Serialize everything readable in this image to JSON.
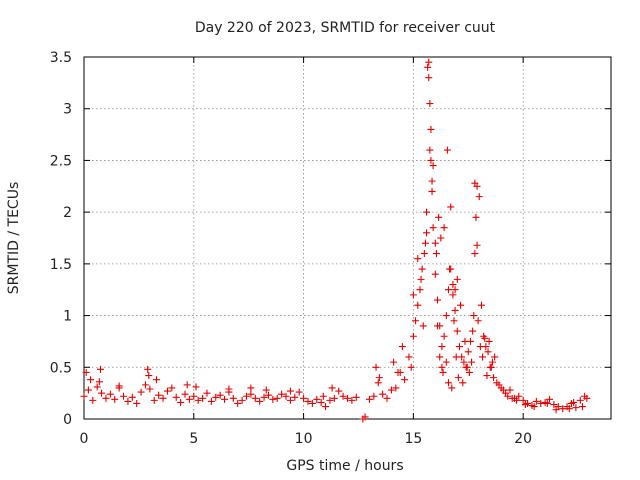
{
  "chart_data": {
    "type": "scatter",
    "title": "Day 220 of 2023, SRMTID for receiver cuut",
    "xlabel": "GPS time / hours",
    "ylabel": "SRMTID / TECUs",
    "xlim": [
      0,
      24
    ],
    "ylim": [
      0,
      3.5
    ],
    "xticks": [
      0,
      5,
      10,
      15,
      20
    ],
    "xtick_labels": [
      "0",
      "5",
      "10",
      "15",
      "20"
    ],
    "yticks": [
      0,
      0.5,
      1,
      1.5,
      2,
      2.5,
      3,
      3.5
    ],
    "ytick_labels": [
      "0",
      "0.5",
      "1",
      "1.5",
      "2",
      "2.5",
      "3",
      "3.5"
    ],
    "grid": true,
    "marker": "+",
    "color": "#e60000",
    "series": [
      {
        "name": "SRMTID",
        "x": [
          0.0,
          0.2,
          0.4,
          0.6,
          0.8,
          1.0,
          1.2,
          1.4,
          1.6,
          1.8,
          2.0,
          2.2,
          2.4,
          2.6,
          2.8,
          3.0,
          3.2,
          3.4,
          3.6,
          3.8,
          4.0,
          4.2,
          4.4,
          4.6,
          4.8,
          5.0,
          5.2,
          5.4,
          5.6,
          5.8,
          6.0,
          6.2,
          6.4,
          6.6,
          6.8,
          7.0,
          7.2,
          7.4,
          7.6,
          7.8,
          8.0,
          8.2,
          8.4,
          8.6,
          8.8,
          9.0,
          9.2,
          9.4,
          9.6,
          9.8,
          10.0,
          10.2,
          10.4,
          10.6,
          10.8,
          11.0,
          11.2,
          11.4,
          11.6,
          11.8,
          12.0,
          12.2,
          12.4,
          12.7,
          13.0,
          13.2,
          13.4,
          13.6,
          13.8,
          14.0,
          14.2,
          14.4,
          14.6,
          14.8,
          15.0,
          15.1,
          15.2,
          15.3,
          15.4,
          15.5,
          15.6,
          15.65,
          15.7,
          15.75,
          15.8,
          15.85,
          15.9,
          16.0,
          16.1,
          16.2,
          16.3,
          16.4,
          16.5,
          16.6,
          16.7,
          16.8,
          16.9,
          17.0,
          17.1,
          17.2,
          17.3,
          17.4,
          17.5,
          17.6,
          17.7,
          17.8,
          17.9,
          18.0,
          18.1,
          18.2,
          18.3,
          18.4,
          18.5,
          18.6,
          18.8,
          19.0,
          19.2,
          19.4,
          19.6,
          19.8,
          20.0,
          20.2,
          20.4,
          20.6,
          20.8,
          21.0,
          21.2,
          21.4,
          21.6,
          21.8,
          22.0,
          22.2,
          22.4,
          22.6,
          22.8,
          0.1,
          0.3,
          0.7,
          0.75,
          1.6,
          2.9,
          2.95,
          3.3,
          4.7,
          5.1,
          6.6,
          7.6,
          8.3,
          9.4,
          10.9,
          11.3,
          12.8,
          13.3,
          13.45,
          14.1,
          14.3,
          14.5,
          14.9,
          15.0,
          15.2,
          15.35,
          15.45,
          15.55,
          15.6,
          15.7,
          15.75,
          15.8,
          15.85,
          15.9,
          16.0,
          16.05,
          16.1,
          16.15,
          16.2,
          16.25,
          16.3,
          16.35,
          16.4,
          16.5,
          16.55,
          16.6,
          16.65,
          16.7,
          16.75,
          16.8,
          16.85,
          16.9,
          16.95,
          17.0,
          17.05,
          17.15,
          17.25,
          17.35,
          17.45,
          17.55,
          17.65,
          17.75,
          17.8,
          17.85,
          17.9,
          17.95,
          18.05,
          18.15,
          18.25,
          18.35,
          18.45,
          18.55,
          18.65,
          18.7,
          18.9,
          19.1,
          19.3,
          19.5,
          19.7,
          20.1,
          20.5,
          21.1,
          21.5,
          22.1,
          22.3,
          22.7,
          22.9
        ],
        "y": [
          0.22,
          0.28,
          0.18,
          0.31,
          0.25,
          0.2,
          0.24,
          0.19,
          0.3,
          0.22,
          0.17,
          0.21,
          0.15,
          0.26,
          0.33,
          0.29,
          0.18,
          0.23,
          0.2,
          0.27,
          0.3,
          0.21,
          0.16,
          0.24,
          0.19,
          0.22,
          0.18,
          0.2,
          0.25,
          0.17,
          0.21,
          0.23,
          0.19,
          0.26,
          0.2,
          0.15,
          0.18,
          0.22,
          0.24,
          0.2,
          0.17,
          0.21,
          0.23,
          0.19,
          0.2,
          0.24,
          0.22,
          0.18,
          0.21,
          0.26,
          0.2,
          0.17,
          0.15,
          0.19,
          0.16,
          0.12,
          0.18,
          0.2,
          0.27,
          0.22,
          0.2,
          0.18,
          0.21,
          0.0,
          0.19,
          0.22,
          0.35,
          0.24,
          0.2,
          0.28,
          0.3,
          0.45,
          0.38,
          0.6,
          0.8,
          0.95,
          1.1,
          1.25,
          1.45,
          1.6,
          1.8,
          3.4,
          3.45,
          2.6,
          2.5,
          2.3,
          1.85,
          1.4,
          1.15,
          0.9,
          0.7,
          0.8,
          1.0,
          1.25,
          1.45,
          1.3,
          1.05,
          0.85,
          0.7,
          0.6,
          0.55,
          0.5,
          0.65,
          0.75,
          0.85,
          1.6,
          2.25,
          2.15,
          1.1,
          0.8,
          0.7,
          0.65,
          0.5,
          0.55,
          0.35,
          0.3,
          0.25,
          0.28,
          0.2,
          0.22,
          0.18,
          0.15,
          0.13,
          0.17,
          0.15,
          0.16,
          0.19,
          0.14,
          0.12,
          0.1,
          0.12,
          0.15,
          0.11,
          0.18,
          0.22,
          0.45,
          0.38,
          0.36,
          0.48,
          0.32,
          0.48,
          0.42,
          0.38,
          0.33,
          0.31,
          0.29,
          0.3,
          0.28,
          0.27,
          0.22,
          0.3,
          0.02,
          0.5,
          0.4,
          0.55,
          0.45,
          0.7,
          0.5,
          1.2,
          1.55,
          1.35,
          0.9,
          1.7,
          2.0,
          3.3,
          3.05,
          2.8,
          2.2,
          2.45,
          1.7,
          1.6,
          0.9,
          1.95,
          0.6,
          1.75,
          0.5,
          0.45,
          1.85,
          0.55,
          2.6,
          0.35,
          1.45,
          2.05,
          0.3,
          1.2,
          0.95,
          1.25,
          0.6,
          1.35,
          0.4,
          1.1,
          0.35,
          0.75,
          0.5,
          0.45,
          0.55,
          1.0,
          2.28,
          1.95,
          1.68,
          0.95,
          0.7,
          0.6,
          0.78,
          0.42,
          0.75,
          0.5,
          0.4,
          0.6,
          0.33,
          0.28,
          0.22,
          0.2,
          0.18,
          0.14,
          0.12,
          0.15,
          0.09,
          0.1,
          0.16,
          0.12,
          0.2
        ]
      }
    ]
  }
}
